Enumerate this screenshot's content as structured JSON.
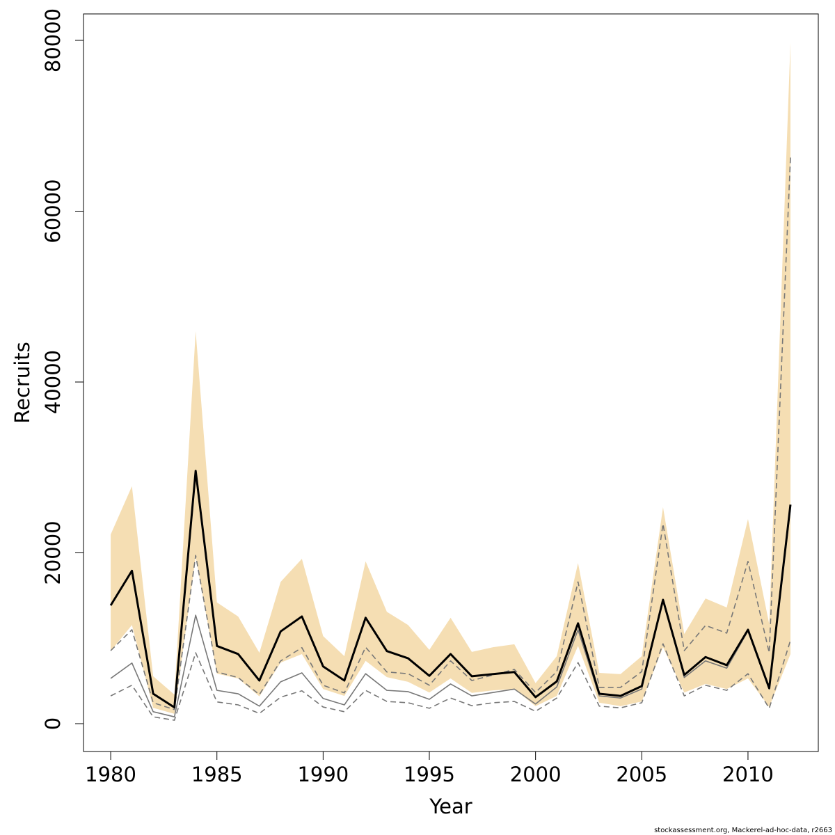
{
  "chart_data": {
    "type": "line",
    "xlabel": "Year",
    "ylabel": "Recruits",
    "footnote": "stockassessment.org, Mackerel-ad-hoc-data, r2663",
    "x": [
      1980,
      1981,
      1982,
      1983,
      1984,
      1985,
      1986,
      1987,
      1988,
      1989,
      1990,
      1991,
      1992,
      1993,
      1994,
      1995,
      1996,
      1997,
      1998,
      1999,
      2000,
      2001,
      2002,
      2003,
      2004,
      2005,
      2006,
      2007,
      2008,
      2009,
      2010,
      2011,
      2012
    ],
    "band": {
      "color": "#f5deb3",
      "upper": [
        22150,
        27800,
        5550,
        3400,
        45950,
        14200,
        12550,
        8300,
        16600,
        19300,
        10250,
        7900,
        19000,
        13100,
        11550,
        8650,
        12400,
        8400,
        8950,
        9300,
        4750,
        7900,
        18800,
        5950,
        5800,
        7900,
        25350,
        10500,
        14650,
        13600,
        23950,
        11650,
        79750
      ],
      "lower": [
        8500,
        11550,
        1850,
        1150,
        19550,
        5850,
        5300,
        3200,
        7150,
        8150,
        4050,
        3250,
        7350,
        5450,
        4900,
        3650,
        5300,
        3600,
        3900,
        4050,
        2050,
        3250,
        9100,
        2450,
        2050,
        2600,
        8950,
        3650,
        4650,
        4050,
        5300,
        1950,
        8150
      ]
    },
    "series": [
      {
        "color": "#777777",
        "style": "dashed",
        "width": 1.6,
        "values": [
          8550,
          11000,
          2450,
          1650,
          19700,
          6050,
          5400,
          3400,
          7350,
          8900,
          4500,
          3600,
          8950,
          6050,
          5850,
          4500,
          7350,
          5050,
          5700,
          6350,
          3650,
          6100,
          16600,
          4250,
          4250,
          6100,
          23400,
          8550,
          11500,
          10600,
          19000,
          8300,
          66300
        ]
      },
      {
        "color": "#777777",
        "style": "solid",
        "width": 1.6,
        "values": [
          5300,
          7100,
          1400,
          800,
          12700,
          3900,
          3500,
          2050,
          4900,
          5950,
          2950,
          2200,
          5850,
          3900,
          3750,
          2850,
          4650,
          3250,
          3650,
          4050,
          2300,
          4300,
          11000,
          3250,
          3000,
          4050,
          14500,
          5400,
          7350,
          6500,
          10850,
          4050,
          25250
        ]
      },
      {
        "color": "#777777",
        "style": "dashed",
        "width": 1.6,
        "values": [
          3250,
          4500,
          800,
          400,
          8300,
          2550,
          2200,
          1200,
          3100,
          3850,
          1950,
          1400,
          3900,
          2600,
          2450,
          1800,
          3000,
          2100,
          2450,
          2600,
          1450,
          3000,
          7150,
          2050,
          1850,
          2450,
          9350,
          3250,
          4500,
          3900,
          5850,
          1800,
          9750
        ]
      },
      {
        "color": "#000000",
        "style": "solid",
        "width": 3,
        "values": [
          13850,
          17900,
          3500,
          1900,
          29600,
          9100,
          8150,
          5050,
          10800,
          12550,
          6700,
          5050,
          12400,
          8500,
          7650,
          5600,
          8150,
          5550,
          5800,
          6050,
          3100,
          4950,
          11750,
          3500,
          3250,
          4400,
          14500,
          5700,
          7800,
          6850,
          11000,
          4150,
          25650
        ]
      }
    ],
    "xlim": [
      1978.72,
      2013.31
    ],
    "xticks": [
      1980,
      1985,
      1990,
      1995,
      2000,
      2005,
      2010
    ],
    "ylim": [
      -3259,
      83095
    ],
    "yticks": [
      0,
      20000,
      40000,
      60000,
      80000
    ]
  }
}
